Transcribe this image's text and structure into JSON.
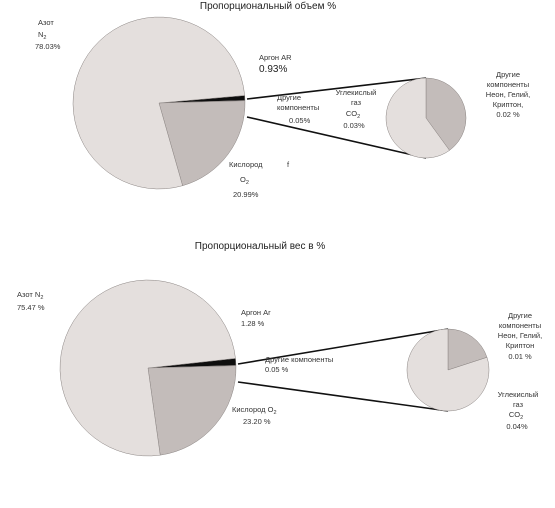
{
  "charts": [
    {
      "title": "Пропорциональный объем %",
      "labels": {
        "n2": {
          "name": "Азот",
          "sym": "N",
          "sub": "2",
          "value": "78.03%"
        },
        "ar": {
          "name": "Аргон AR",
          "value": "0.93%"
        },
        "other": {
          "line1": "Другие",
          "line2": "компоненты",
          "value": "0.05%"
        },
        "co2": {
          "line1": "Углекислый",
          "line2": "газ",
          "sym": "CO",
          "sub": "2",
          "value": "0.03%"
        },
        "o2": {
          "name": "Кислород",
          "mark": "f",
          "sym": "O",
          "sub": "2",
          "value": "20.99%"
        },
        "rest": {
          "line1": "Другие",
          "line2": "компоненты",
          "line3": "Неон, Гелий,",
          "line4": "Криптон,",
          "value": "0.02 %"
        }
      }
    },
    {
      "title": "Пропорциональный вес в %",
      "labels": {
        "n2": {
          "name": "Азот",
          "sym": "N",
          "sub": "2",
          "value": "75.47 %"
        },
        "ar": {
          "name": "Аргон Ar",
          "value": "1.28 %"
        },
        "other": {
          "line1": "Другие компоненты",
          "value": "0.05 %"
        },
        "co2": {
          "line1": "Углекислый",
          "line2": "газ",
          "sym": "CO",
          "sub": "2",
          "value": "0.04%"
        },
        "o2": {
          "name": "Кислород",
          "sym": "O",
          "sub": "2",
          "value": "23.20 %"
        },
        "rest": {
          "line1": "Другие",
          "line2": "компоненты",
          "line3": "Неон, Гелий,",
          "line4": "Криптон",
          "value": "0.01 %"
        }
      }
    }
  ],
  "colors": {
    "nitrogen": "#e4dfdd",
    "oxygen": "#c3bcba",
    "argon": "#0e0e0e",
    "outline": "#8a8482"
  },
  "chart_data": [
    {
      "type": "pie",
      "title": "Пропорциональный объем %",
      "main": [
        {
          "label": "Азот N2",
          "value": 78.03
        },
        {
          "label": "Кислород O2",
          "value": 20.99
        },
        {
          "label": "Аргон AR",
          "value": 0.93
        },
        {
          "label": "Другие компоненты",
          "value": 0.05
        }
      ],
      "detail": [
        {
          "label": "Углекислый газ CO2",
          "value": 0.03
        },
        {
          "label": "Другие компоненты Неон, Гелий, Криптон",
          "value": 0.02
        }
      ]
    },
    {
      "type": "pie",
      "title": "Пропорциональный вес в %",
      "main": [
        {
          "label": "Азот N2",
          "value": 75.47
        },
        {
          "label": "Кислород O2",
          "value": 23.2
        },
        {
          "label": "Аргон Ar",
          "value": 1.28
        },
        {
          "label": "Другие компоненты",
          "value": 0.05
        }
      ],
      "detail": [
        {
          "label": "Углекислый газ CO2",
          "value": 0.04
        },
        {
          "label": "Другие компоненты Неон, Гелий, Криптон",
          "value": 0.01
        }
      ]
    }
  ]
}
